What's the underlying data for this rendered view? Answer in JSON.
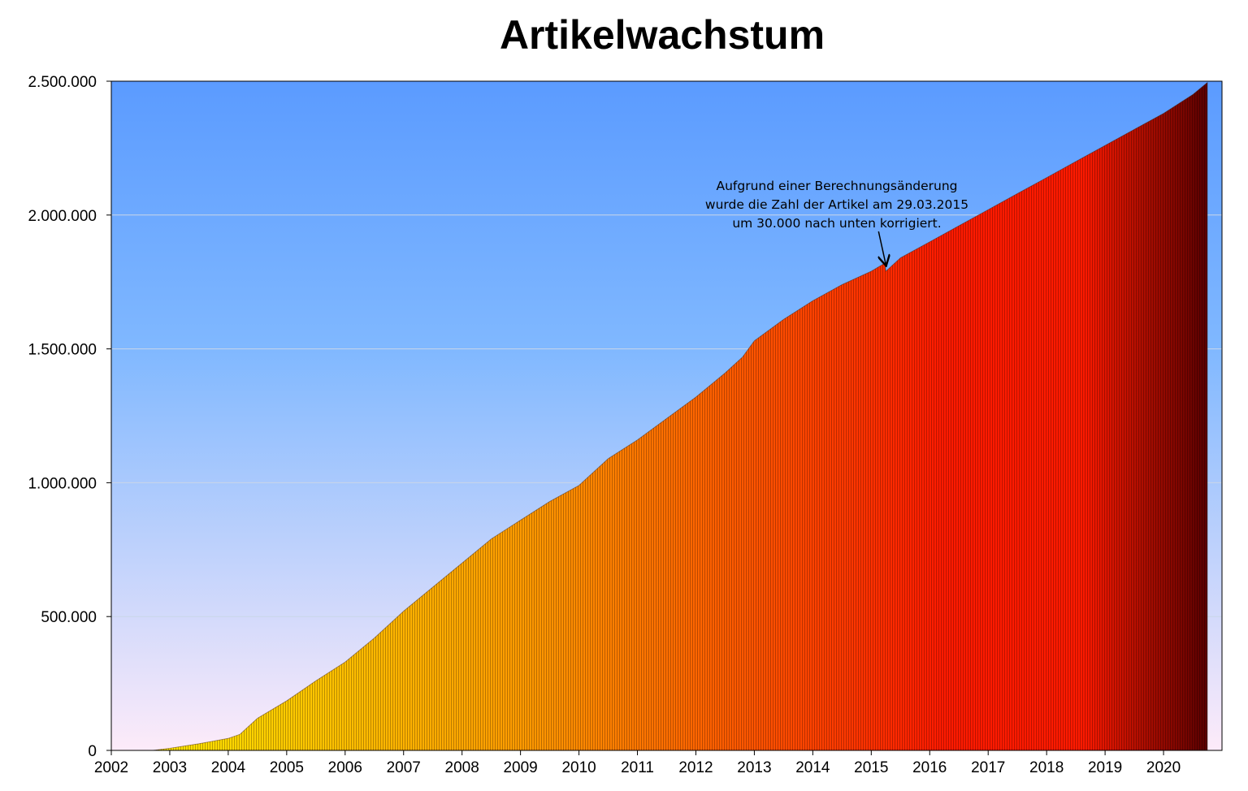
{
  "chart_data": {
    "type": "bar",
    "title": "Artikelwachstum",
    "xlabel": "",
    "ylabel": "",
    "ylim": [
      0,
      2500000
    ],
    "xlim": [
      2002,
      2021
    ],
    "grid": true,
    "legend": "none",
    "y_ticks": [
      0,
      500000,
      1000000,
      1500000,
      2000000,
      2500000
    ],
    "y_tick_labels": [
      "0",
      "500.000",
      "1.000.000",
      "1.500.000",
      "2.000.000",
      "2.500.000"
    ],
    "x_tick_labels": [
      "2002",
      "2003",
      "2004",
      "2005",
      "2006",
      "2007",
      "2008",
      "2009",
      "2010",
      "2011",
      "2012",
      "2013",
      "2014",
      "2015",
      "2016",
      "2017",
      "2018",
      "2019",
      "2020"
    ],
    "series": [
      {
        "x": [
          2002.7,
          2003.0,
          2003.5,
          2004.0,
          2004.2,
          2004.5,
          2005.0,
          2005.5,
          2006.0,
          2006.5,
          2007.0,
          2007.5,
          2008.0,
          2008.5,
          2009.0,
          2009.5,
          2010.0,
          2010.5,
          2011.0,
          2011.5,
          2012.0,
          2012.5,
          2012.8,
          2013.0,
          2013.5,
          2014.0,
          2014.5,
          2015.0,
          2015.23,
          2015.25,
          2015.5,
          2016.0,
          2016.5,
          2017.0,
          2017.5,
          2018.0,
          2018.5,
          2019.0,
          2019.5,
          2020.0,
          2020.5,
          2020.75
        ],
        "values": [
          0,
          8000,
          25000,
          45000,
          60000,
          120000,
          185000,
          260000,
          330000,
          420000,
          520000,
          610000,
          700000,
          790000,
          860000,
          930000,
          990000,
          1090000,
          1160000,
          1240000,
          1320000,
          1410000,
          1470000,
          1530000,
          1610000,
          1680000,
          1740000,
          1790000,
          1820000,
          1790000,
          1840000,
          1900000,
          1960000,
          2020000,
          2080000,
          2140000,
          2200000,
          2260000,
          2320000,
          2380000,
          2450000,
          2495000
        ]
      }
    ],
    "annotations": [
      {
        "lines": [
          "Aufgrund einer Berechnungsänderung",
          "wurde die Zahl der Artikel am 29.03.2015",
          "um 30.000 nach unten korrigiert."
        ],
        "target_x": 2015.25,
        "target_value": 1790000
      }
    ],
    "colors": {
      "plot_bg_top": "#5b9bff",
      "plot_bg_mid": "#80b8ff",
      "plot_bg_bottom": "#fdebf9",
      "bar_yellow": "#ffe600",
      "bar_orange": "#ff9a00",
      "bar_red": "#ff1a00",
      "bar_dark": "#5a0000",
      "gridline": "#c9d6e8"
    }
  }
}
